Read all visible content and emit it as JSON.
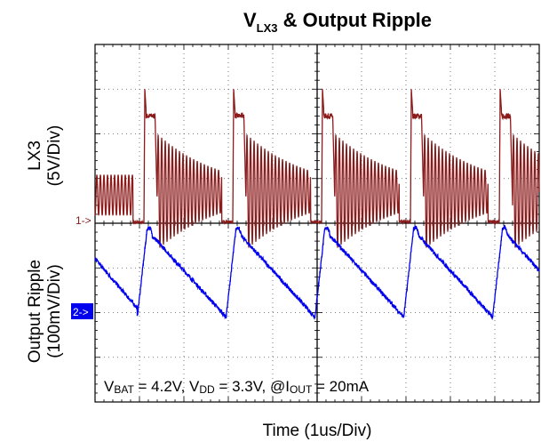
{
  "chart_data": {
    "type": "line",
    "title": {
      "main": "V",
      "sub": "LX3",
      "rest": " & Output Ripple"
    },
    "xlabel": "Time (1us/Div)",
    "ylabel_top": [
      "LX3",
      "(5V/Div)"
    ],
    "ylabel_bottom": [
      "Output Ripple",
      "(100mV/Div)"
    ],
    "conditions": [
      {
        "t": "V"
      },
      {
        "t": "BAT",
        "sub": true
      },
      {
        "t": " = 4.2V, V"
      },
      {
        "t": "DD",
        "sub": true
      },
      {
        "t": " = 3.3V, @I"
      },
      {
        "t": "OUT",
        "sub": true
      },
      {
        "t": " = 20mA"
      }
    ],
    "x_divisions": 10,
    "y_divisions": 8,
    "grid": true,
    "channel_markers": [
      {
        "label": "1->",
        "color": "#8b1a1a"
      },
      {
        "label": "2->",
        "color": "#0000ee"
      }
    ],
    "switching_period_div": 2.0,
    "series": [
      {
        "color": "#8b1a1a",
        "unit": "V",
        "baseline_div": 0,
        "pulse_starts_div": [
          1.1,
          3.1,
          5.1,
          7.1,
          9.1
        ],
        "pulse_peak_V": 15.0,
        "pulse_plateau_V": 12.0,
        "ring_amplitude_V": 6.5,
        "ring_center_V": 3.5,
        "ring_period_div": 0.08
      },
      {
        "color": "#0000ee",
        "unit": "mV",
        "baseline_div": -0.5,
        "ramp_start_div": [
          0.95,
          2.95,
          4.95,
          6.95,
          8.95
        ],
        "peak_mV": 80,
        "valley_mV": -115,
        "pre_segment": {
          "from_mV": 15,
          "to_mV": -95
        }
      }
    ]
  }
}
